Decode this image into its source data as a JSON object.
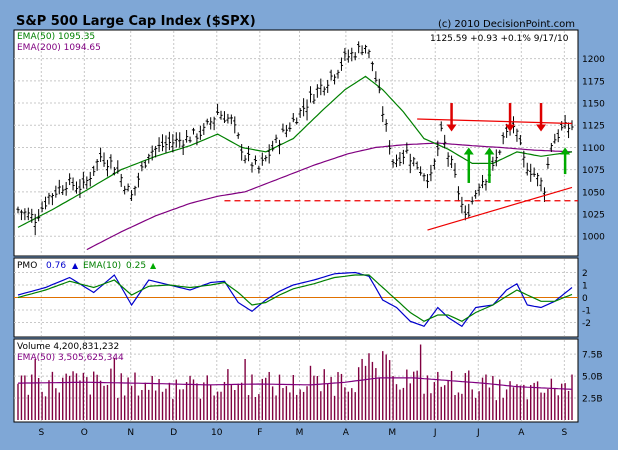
{
  "header": {
    "title": "S&P 500 Large Cap Index ($SPX)",
    "copyright": "(c) 2010 DecisionPoint.com",
    "quote": "1125.59  +0.93  +0.1%  9/17/10"
  },
  "colors": {
    "frame": "#7fa7d6",
    "panel_bg": "#ffffff",
    "price": "#000000",
    "ema50": "#008000",
    "ema200": "#800080",
    "pmo": "#0000cc",
    "pmo_ema": "#008000",
    "zero_line": "#e07000",
    "arrow_red": "#dd0000",
    "arrow_green": "#00aa00",
    "trend_red": "#ee0000",
    "volume": "#800040"
  },
  "legend": {
    "ema50": "EMA(50) 1095.35",
    "ema200": "EMA(200) 1094.65",
    "pmo_label": "PMO",
    "pmo_value": "0.76",
    "pmo_arrow": "▲",
    "pmo_ema_label": "EMA(10)",
    "pmo_ema_value": "0.25",
    "volume": "Volume  4,200,831,232",
    "volume_ema": "EMA(50) 3,505,625,344"
  },
  "chart_data": [
    {
      "type": "ohlc",
      "panel": "price",
      "title": "S&P 500 Large Cap Index ($SPX)",
      "ylim": [
        980,
        1230
      ],
      "yticks": [
        1000,
        1025,
        1050,
        1075,
        1100,
        1125,
        1150,
        1175,
        1200
      ],
      "x_months": [
        "S",
        "O",
        "N",
        "D",
        "10",
        "F",
        "M",
        "A",
        "M",
        "J",
        "J",
        "A",
        "S"
      ],
      "anchors": [
        [
          0,
          1030
        ],
        [
          5,
          1020
        ],
        [
          9,
          1045
        ],
        [
          14,
          1060
        ],
        [
          19,
          1055
        ],
        [
          24,
          1090
        ],
        [
          28,
          1080
        ],
        [
          33,
          1045
        ],
        [
          38,
          1095
        ],
        [
          44,
          1105
        ],
        [
          49,
          1110
        ],
        [
          54,
          1118
        ],
        [
          58,
          1140
        ],
        [
          62,
          1130
        ],
        [
          66,
          1090
        ],
        [
          70,
          1075
        ],
        [
          75,
          1105
        ],
        [
          79,
          1125
        ],
        [
          84,
          1150
        ],
        [
          87,
          1165
        ],
        [
          91,
          1180
        ],
        [
          95,
          1200
        ],
        [
          99,
          1210
        ],
        [
          101,
          1215
        ],
        [
          103,
          1195
        ],
        [
          106,
          1140
        ],
        [
          109,
          1085
        ],
        [
          113,
          1095
        ],
        [
          117,
          1075
        ],
        [
          120,
          1065
        ],
        [
          123,
          1115
        ],
        [
          126,
          1080
        ],
        [
          130,
          1020
        ],
        [
          134,
          1060
        ],
        [
          138,
          1075
        ],
        [
          141,
          1110
        ],
        [
          144,
          1125
        ],
        [
          147,
          1085
        ],
        [
          150,
          1070
        ],
        [
          153,
          1055
        ],
        [
          155,
          1105
        ],
        [
          158,
          1120
        ],
        [
          161,
          1124
        ]
      ],
      "ema50_anchors": [
        [
          0,
          1010
        ],
        [
          10,
          1030
        ],
        [
          20,
          1052
        ],
        [
          30,
          1075
        ],
        [
          40,
          1090
        ],
        [
          50,
          1102
        ],
        [
          58,
          1115
        ],
        [
          65,
          1100
        ],
        [
          72,
          1095
        ],
        [
          80,
          1110
        ],
        [
          88,
          1140
        ],
        [
          95,
          1165
        ],
        [
          101,
          1180
        ],
        [
          106,
          1165
        ],
        [
          112,
          1140
        ],
        [
          118,
          1110
        ],
        [
          125,
          1098
        ],
        [
          132,
          1082
        ],
        [
          138,
          1082
        ],
        [
          145,
          1095
        ],
        [
          152,
          1090
        ],
        [
          161,
          1095
        ]
      ],
      "ema200_anchors": [
        [
          20,
          985
        ],
        [
          30,
          1005
        ],
        [
          40,
          1023
        ],
        [
          50,
          1037
        ],
        [
          58,
          1045
        ],
        [
          66,
          1050
        ],
        [
          76,
          1065
        ],
        [
          86,
          1080
        ],
        [
          96,
          1093
        ],
        [
          104,
          1100
        ],
        [
          112,
          1103
        ],
        [
          122,
          1105
        ],
        [
          132,
          1102
        ],
        [
          140,
          1100
        ],
        [
          150,
          1097
        ],
        [
          161,
          1095
        ]
      ],
      "annotations": {
        "red_arrows_over": [
          126,
          143,
          152
        ],
        "green_arrows_under": [
          131,
          137,
          159
        ],
        "resistance_line": [
          [
            116,
            1132
          ],
          [
            161,
            1127
          ]
        ],
        "support_dashed_level": 1040,
        "rising_trendline": [
          [
            119,
            1007
          ],
          [
            161,
            1055
          ]
        ]
      }
    },
    {
      "type": "line",
      "panel": "pmo",
      "ylim": [
        -3,
        3
      ],
      "yticks": [
        -2,
        -1,
        0,
        1,
        2
      ],
      "series": [
        {
          "name": "PMO",
          "anchors": [
            [
              0,
              0.2
            ],
            [
              8,
              0.8
            ],
            [
              15,
              1.6
            ],
            [
              22,
              0.4
            ],
            [
              28,
              1.8
            ],
            [
              33,
              -0.6
            ],
            [
              38,
              1.4
            ],
            [
              44,
              1.0
            ],
            [
              50,
              0.6
            ],
            [
              56,
              1.2
            ],
            [
              60,
              1.3
            ],
            [
              64,
              -0.4
            ],
            [
              68,
              -1.1
            ],
            [
              72,
              -0.2
            ],
            [
              76,
              0.5
            ],
            [
              80,
              1.0
            ],
            [
              86,
              1.4
            ],
            [
              92,
              1.9
            ],
            [
              98,
              2.0
            ],
            [
              102,
              1.7
            ],
            [
              106,
              -0.2
            ],
            [
              110,
              -0.8
            ],
            [
              114,
              -1.9
            ],
            [
              118,
              -2.3
            ],
            [
              122,
              -0.8
            ],
            [
              125,
              -1.6
            ],
            [
              129,
              -2.3
            ],
            [
              133,
              -0.8
            ],
            [
              138,
              -0.6
            ],
            [
              142,
              0.6
            ],
            [
              145,
              1.1
            ],
            [
              148,
              -0.6
            ],
            [
              152,
              -0.8
            ],
            [
              156,
              -0.3
            ],
            [
              161,
              0.8
            ]
          ]
        },
        {
          "name": "EMA(10)",
          "anchors": [
            [
              0,
              0.0
            ],
            [
              8,
              0.6
            ],
            [
              15,
              1.3
            ],
            [
              22,
              0.8
            ],
            [
              28,
              1.4
            ],
            [
              33,
              0.2
            ],
            [
              38,
              0.9
            ],
            [
              44,
              1.0
            ],
            [
              50,
              0.8
            ],
            [
              56,
              1.0
            ],
            [
              60,
              1.2
            ],
            [
              64,
              0.4
            ],
            [
              68,
              -0.6
            ],
            [
              72,
              -0.4
            ],
            [
              76,
              0.2
            ],
            [
              80,
              0.7
            ],
            [
              86,
              1.1
            ],
            [
              92,
              1.6
            ],
            [
              98,
              1.8
            ],
            [
              102,
              1.8
            ],
            [
              106,
              0.8
            ],
            [
              110,
              -0.2
            ],
            [
              114,
              -1.2
            ],
            [
              118,
              -1.9
            ],
            [
              122,
              -1.4
            ],
            [
              125,
              -1.4
            ],
            [
              129,
              -1.9
            ],
            [
              133,
              -1.2
            ],
            [
              138,
              -0.6
            ],
            [
              142,
              0.1
            ],
            [
              145,
              0.6
            ],
            [
              148,
              0.2
            ],
            [
              152,
              -0.3
            ],
            [
              156,
              -0.3
            ],
            [
              161,
              0.25
            ]
          ]
        }
      ]
    },
    {
      "type": "bar",
      "panel": "volume",
      "ylim": [
        0,
        9
      ],
      "yticks": [
        2.5,
        5.0,
        7.5
      ],
      "ytick_labels": [
        "2.5B",
        "5.0B",
        "7.5B"
      ],
      "unit": "billions",
      "volume_anchors": [
        [
          0,
          4.2
        ],
        [
          15,
          4.5
        ],
        [
          30,
          4.0
        ],
        [
          40,
          4.3
        ],
        [
          50,
          3.5
        ],
        [
          60,
          4.4
        ],
        [
          70,
          4.2
        ],
        [
          85,
          4.0
        ],
        [
          95,
          4.8
        ],
        [
          100,
          5.5
        ],
        [
          105,
          6.0
        ],
        [
          110,
          5.2
        ],
        [
          120,
          4.3
        ],
        [
          130,
          4.4
        ],
        [
          140,
          3.6
        ],
        [
          150,
          3.3
        ],
        [
          161,
          4.2
        ]
      ],
      "ema_anchors": [
        [
          0,
          4.2
        ],
        [
          20,
          4.3
        ],
        [
          40,
          4.15
        ],
        [
          55,
          4.0
        ],
        [
          70,
          4.1
        ],
        [
          85,
          4.0
        ],
        [
          95,
          4.3
        ],
        [
          105,
          4.8
        ],
        [
          115,
          4.8
        ],
        [
          125,
          4.5
        ],
        [
          135,
          4.2
        ],
        [
          145,
          3.8
        ],
        [
          155,
          3.6
        ],
        [
          161,
          3.5
        ]
      ]
    }
  ]
}
